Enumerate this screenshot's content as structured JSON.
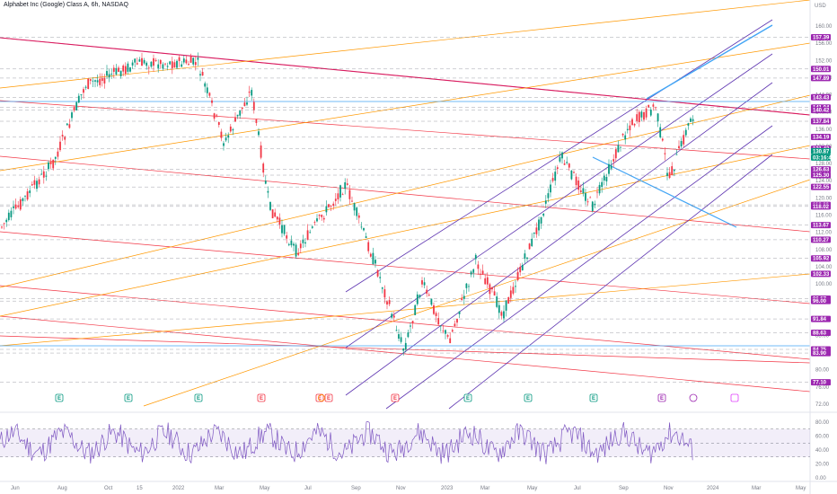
{
  "header": {
    "title": "Alphabet Inc (Google) Class A, 6h, NASDAQ",
    "currency": "USD"
  },
  "price_scale": {
    "ticks": [
      "160.00",
      "156.00",
      "152.00",
      "148.00",
      "144.00",
      "140.00",
      "136.00",
      "132.00",
      "128.00",
      "124.00",
      "120.00",
      "116.00",
      "112.00",
      "108.00",
      "104.00",
      "100.00",
      "96.00",
      "92.00",
      "88.00",
      "84.00",
      "80.00",
      "76.00",
      "72.00"
    ],
    "tags": [
      {
        "label": "157.39",
        "color": "#9c27b0"
      },
      {
        "label": "150.01",
        "color": "#9c27b0"
      },
      {
        "label": "147.89",
        "color": "#9c27b0"
      },
      {
        "label": "143.43",
        "color": "#9c27b0"
      },
      {
        "label": "141.04",
        "color": "#9c27b0"
      },
      {
        "label": "140.42",
        "color": "#9c27b0"
      },
      {
        "label": "137.84",
        "color": "#9c27b0"
      },
      {
        "label": "134.19",
        "color": "#9c27b0"
      },
      {
        "label": "131.43",
        "color": "#9c27b0"
      },
      {
        "label": "130.87",
        "color": "#089981"
      },
      {
        "label": "03:16:42",
        "color": "#089981"
      },
      {
        "label": "126.63",
        "color": "#9c27b0"
      },
      {
        "label": "125.30",
        "color": "#9c27b0"
      },
      {
        "label": "122.55",
        "color": "#9c27b0"
      },
      {
        "label": "118.39",
        "color": "#9c27b0"
      },
      {
        "label": "118.02",
        "color": "#9c27b0"
      },
      {
        "label": "113.67",
        "color": "#9c27b0"
      },
      {
        "label": "110.27",
        "color": "#9c27b0"
      },
      {
        "label": "105.92",
        "color": "#9c27b0"
      },
      {
        "label": "102.33",
        "color": "#9c27b0"
      },
      {
        "label": "96.57",
        "color": "#9c27b0"
      },
      {
        "label": "96.00",
        "color": "#9c27b0"
      },
      {
        "label": "91.84",
        "color": "#9c27b0"
      },
      {
        "label": "88.63",
        "color": "#9c27b0"
      },
      {
        "label": "84.75",
        "color": "#9c27b0"
      },
      {
        "label": "83.90",
        "color": "#9c27b0"
      },
      {
        "label": "77.10",
        "color": "#9c27b0"
      }
    ]
  },
  "time_axis": {
    "labels": [
      "Jun",
      "Aug",
      "Oct",
      "15",
      "2022",
      "Mar",
      "May",
      "Jul",
      "Sep",
      "Nov",
      "2023",
      "Mar",
      "May",
      "Jul",
      "Sep",
      "Nov",
      "2024",
      "Mar",
      "May"
    ]
  },
  "rsi_scale": {
    "ticks": [
      "80.00",
      "60.00",
      "40.00",
      "20.00",
      "0.00"
    ]
  },
  "events": [
    {
      "kind": "E",
      "color": "#089981"
    },
    {
      "kind": "E",
      "color": "#089981"
    },
    {
      "kind": "E",
      "color": "#089981"
    },
    {
      "kind": "E",
      "color": "#f23645"
    },
    {
      "kind": "E",
      "color": "#f23645"
    },
    {
      "kind": "E",
      "color": "#f23645"
    },
    {
      "kind": "E",
      "color": "#f23645"
    },
    {
      "kind": "E",
      "color": "#089981"
    },
    {
      "kind": "E",
      "color": "#089981"
    },
    {
      "kind": "E",
      "color": "#089981"
    },
    {
      "kind": "E",
      "color": "#9c27b0"
    }
  ],
  "colors": {
    "up": "#089981",
    "down": "#f23645",
    "rsi": "#7e57c2",
    "red_channel": "#f23645",
    "orange_channel": "#ff9800",
    "purple_channel": "#5e35b1",
    "blue_line": "#42a5f5"
  }
}
